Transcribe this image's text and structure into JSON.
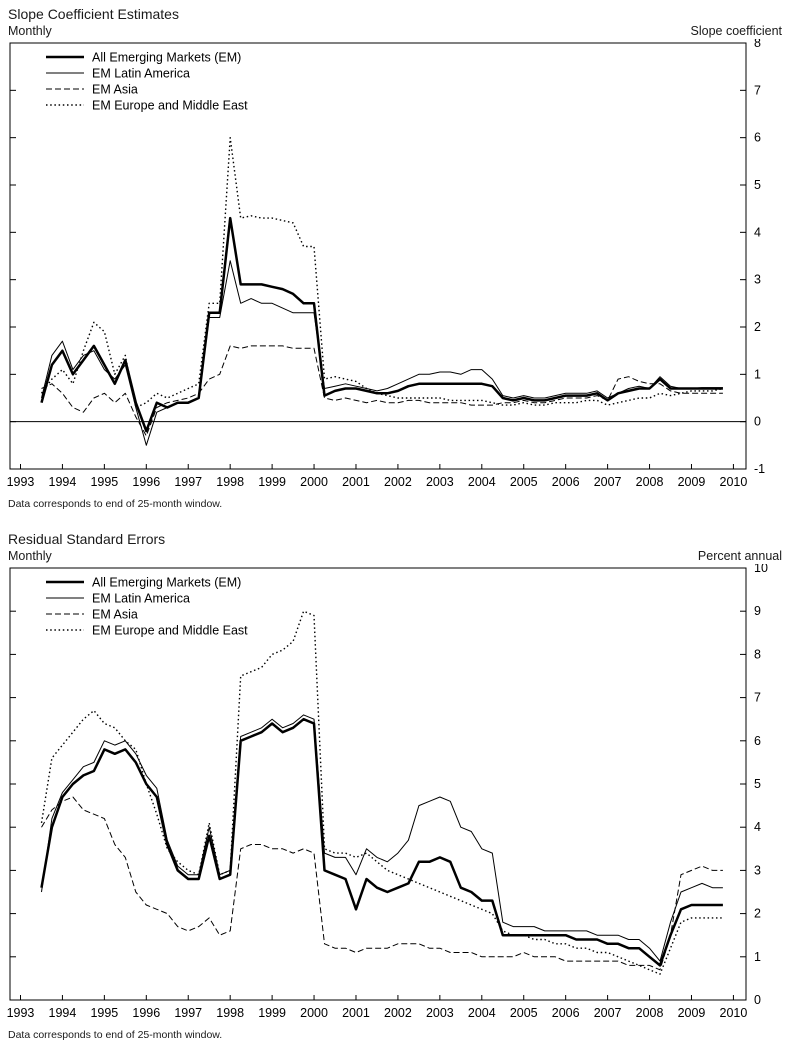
{
  "page": {
    "background_color": "#ffffff",
    "line_color": "#000000"
  },
  "chart_data": [
    {
      "type": "line",
      "title": "Slope Coefficient Estimates",
      "subtitle_left": "Monthly",
      "axis_label_right": "Slope coefficient",
      "footnote": "Data corresponds to end of 25-month window.",
      "legend_position": "top-left-inside",
      "grid": false,
      "zero_line": true,
      "ylim": [
        -1,
        8
      ],
      "yticks": [
        -1,
        0,
        1,
        2,
        3,
        4,
        5,
        6,
        7,
        8
      ],
      "xlim": [
        1992.75,
        2010.3
      ],
      "xticks": [
        1993,
        1994,
        1995,
        1996,
        1997,
        1998,
        1999,
        2000,
        2001,
        2002,
        2003,
        2004,
        2005,
        2006,
        2007,
        2008,
        2009,
        2010
      ],
      "x": [
        1993.5,
        1993.75,
        1994,
        1994.25,
        1994.5,
        1994.75,
        1995,
        1995.25,
        1995.5,
        1995.75,
        1996,
        1996.25,
        1996.5,
        1996.75,
        1997,
        1997.25,
        1997.5,
        1997.75,
        1998,
        1998.25,
        1998.5,
        1998.75,
        1999,
        1999.25,
        1999.5,
        1999.75,
        2000,
        2000.25,
        2000.5,
        2000.75,
        2001,
        2001.25,
        2001.5,
        2001.75,
        2002,
        2002.25,
        2002.5,
        2002.75,
        2003,
        2003.25,
        2003.5,
        2003.75,
        2004,
        2004.25,
        2004.5,
        2004.75,
        2005,
        2005.25,
        2005.5,
        2005.75,
        2006,
        2006.25,
        2006.5,
        2006.75,
        2007,
        2007.25,
        2007.5,
        2007.75,
        2008,
        2008.25,
        2008.5,
        2008.75,
        2009,
        2009.25,
        2009.5,
        2009.75
      ],
      "series": [
        {
          "name": "All Emerging Markets (EM)",
          "style": "thick",
          "values": [
            0.4,
            1.2,
            1.5,
            1.0,
            1.3,
            1.6,
            1.2,
            0.8,
            1.3,
            0.4,
            -0.2,
            0.4,
            0.3,
            0.4,
            0.4,
            0.5,
            2.3,
            2.3,
            4.3,
            2.9,
            2.9,
            2.9,
            2.85,
            2.8,
            2.7,
            2.5,
            2.5,
            0.55,
            0.65,
            0.7,
            0.7,
            0.65,
            0.6,
            0.6,
            0.65,
            0.75,
            0.8,
            0.8,
            0.8,
            0.8,
            0.8,
            0.8,
            0.8,
            0.75,
            0.5,
            0.45,
            0.5,
            0.45,
            0.45,
            0.5,
            0.55,
            0.55,
            0.55,
            0.6,
            0.45,
            0.6,
            0.65,
            0.7,
            0.7,
            0.9,
            0.7,
            0.7,
            0.7,
            0.7,
            0.7,
            0.7
          ]
        },
        {
          "name": "EM Latin America",
          "style": "thin",
          "values": [
            0.5,
            1.4,
            1.7,
            1.1,
            1.4,
            1.5,
            1.1,
            0.9,
            1.2,
            0.3,
            -0.5,
            0.2,
            0.3,
            0.4,
            0.4,
            0.5,
            2.2,
            2.2,
            3.4,
            2.5,
            2.6,
            2.5,
            2.5,
            2.4,
            2.3,
            2.3,
            2.3,
            0.7,
            0.75,
            0.8,
            0.75,
            0.7,
            0.65,
            0.7,
            0.8,
            0.9,
            1.0,
            1.0,
            1.05,
            1.05,
            1.0,
            1.1,
            1.1,
            0.9,
            0.55,
            0.5,
            0.55,
            0.5,
            0.5,
            0.55,
            0.6,
            0.6,
            0.6,
            0.65,
            0.5,
            0.6,
            0.7,
            0.75,
            0.7,
            0.95,
            0.75,
            0.7,
            0.7,
            0.72,
            0.72,
            0.72
          ]
        },
        {
          "name": "EM Asia",
          "style": "dashed",
          "values": [
            0.7,
            0.8,
            0.6,
            0.3,
            0.2,
            0.5,
            0.6,
            0.4,
            0.6,
            0.1,
            -0.3,
            0.3,
            0.4,
            0.45,
            0.5,
            0.6,
            0.9,
            1.0,
            1.6,
            1.55,
            1.6,
            1.6,
            1.6,
            1.6,
            1.55,
            1.55,
            1.55,
            0.5,
            0.45,
            0.5,
            0.45,
            0.4,
            0.45,
            0.4,
            0.4,
            0.45,
            0.45,
            0.4,
            0.4,
            0.4,
            0.4,
            0.35,
            0.35,
            0.35,
            0.4,
            0.4,
            0.45,
            0.4,
            0.4,
            0.45,
            0.5,
            0.5,
            0.5,
            0.55,
            0.45,
            0.9,
            0.95,
            0.85,
            0.8,
            0.8,
            0.65,
            0.6,
            0.6,
            0.6,
            0.6,
            0.6
          ]
        },
        {
          "name": "EM Europe and Middle East",
          "style": "dotted",
          "values": [
            0.6,
            0.9,
            1.1,
            0.8,
            1.5,
            2.1,
            1.9,
            1.0,
            1.4,
            0.3,
            0.4,
            0.6,
            0.5,
            0.6,
            0.7,
            0.8,
            2.5,
            2.5,
            6.0,
            4.3,
            4.35,
            4.3,
            4.3,
            4.25,
            4.2,
            3.7,
            3.7,
            0.9,
            0.95,
            0.9,
            0.85,
            0.7,
            0.6,
            0.55,
            0.5,
            0.5,
            0.5,
            0.5,
            0.5,
            0.45,
            0.45,
            0.45,
            0.45,
            0.4,
            0.35,
            0.35,
            0.4,
            0.35,
            0.35,
            0.4,
            0.4,
            0.4,
            0.45,
            0.45,
            0.35,
            0.4,
            0.45,
            0.5,
            0.5,
            0.6,
            0.55,
            0.6,
            0.65,
            0.65,
            0.65,
            0.7
          ]
        }
      ]
    },
    {
      "type": "line",
      "title": "Residual Standard Errors",
      "subtitle_left": "Monthly",
      "axis_label_right": "Percent annual",
      "footnote": "Data corresponds to end of 25-month window.",
      "legend_position": "top-left-inside",
      "grid": false,
      "zero_line": false,
      "ylim": [
        0,
        10
      ],
      "yticks": [
        0,
        1,
        2,
        3,
        4,
        5,
        6,
        7,
        8,
        9,
        10
      ],
      "xlim": [
        1992.75,
        2010.3
      ],
      "xticks": [
        1993,
        1994,
        1995,
        1996,
        1997,
        1998,
        1999,
        2000,
        2001,
        2002,
        2003,
        2004,
        2005,
        2006,
        2007,
        2008,
        2009,
        2010
      ],
      "x": [
        1993.5,
        1993.75,
        1994,
        1994.25,
        1994.5,
        1994.75,
        1995,
        1995.25,
        1995.5,
        1995.75,
        1996,
        1996.25,
        1996.5,
        1996.75,
        1997,
        1997.25,
        1997.5,
        1997.75,
        1998,
        1998.25,
        1998.5,
        1998.75,
        1999,
        1999.25,
        1999.5,
        1999.75,
        2000,
        2000.25,
        2000.5,
        2000.75,
        2001,
        2001.25,
        2001.5,
        2001.75,
        2002,
        2002.25,
        2002.5,
        2002.75,
        2003,
        2003.25,
        2003.5,
        2003.75,
        2004,
        2004.25,
        2004.5,
        2004.75,
        2005,
        2005.25,
        2005.5,
        2005.75,
        2006,
        2006.25,
        2006.5,
        2006.75,
        2007,
        2007.25,
        2007.5,
        2007.75,
        2008,
        2008.25,
        2008.5,
        2008.75,
        2009,
        2009.25,
        2009.5,
        2009.75
      ],
      "series": [
        {
          "name": "All Emerging Markets (EM)",
          "style": "thick",
          "values": [
            2.6,
            4.0,
            4.7,
            5.0,
            5.2,
            5.3,
            5.8,
            5.7,
            5.8,
            5.5,
            5.0,
            4.7,
            3.6,
            3.0,
            2.8,
            2.8,
            3.8,
            2.8,
            2.9,
            6.0,
            6.1,
            6.2,
            6.4,
            6.2,
            6.3,
            6.5,
            6.4,
            3.0,
            2.9,
            2.8,
            2.1,
            2.8,
            2.6,
            2.5,
            2.6,
            2.7,
            3.2,
            3.2,
            3.3,
            3.2,
            2.6,
            2.5,
            2.3,
            2.3,
            1.5,
            1.5,
            1.5,
            1.5,
            1.5,
            1.5,
            1.5,
            1.4,
            1.4,
            1.4,
            1.3,
            1.3,
            1.2,
            1.2,
            1.0,
            0.8,
            1.5,
            2.1,
            2.2,
            2.2,
            2.2,
            2.2
          ]
        },
        {
          "name": "EM Latin America",
          "style": "thin",
          "values": [
            2.5,
            4.2,
            4.8,
            5.1,
            5.4,
            5.5,
            6.0,
            5.9,
            6.0,
            5.7,
            5.2,
            4.9,
            3.7,
            3.1,
            2.9,
            2.9,
            4.0,
            2.9,
            3.0,
            6.1,
            6.2,
            6.3,
            6.5,
            6.3,
            6.4,
            6.6,
            6.5,
            3.4,
            3.3,
            3.3,
            2.9,
            3.5,
            3.3,
            3.2,
            3.4,
            3.7,
            4.5,
            4.6,
            4.7,
            4.6,
            4.0,
            3.9,
            3.5,
            3.4,
            1.8,
            1.7,
            1.7,
            1.7,
            1.6,
            1.6,
            1.6,
            1.6,
            1.6,
            1.5,
            1.5,
            1.5,
            1.4,
            1.4,
            1.2,
            0.9,
            1.8,
            2.5,
            2.6,
            2.7,
            2.6,
            2.6
          ]
        },
        {
          "name": "EM Asia",
          "style": "dashed",
          "values": [
            4.0,
            4.4,
            4.6,
            4.7,
            4.4,
            4.3,
            4.2,
            3.6,
            3.3,
            2.5,
            2.2,
            2.1,
            2.0,
            1.7,
            1.6,
            1.7,
            1.9,
            1.5,
            1.6,
            3.5,
            3.6,
            3.6,
            3.5,
            3.5,
            3.4,
            3.5,
            3.4,
            1.3,
            1.2,
            1.2,
            1.1,
            1.2,
            1.2,
            1.2,
            1.3,
            1.3,
            1.3,
            1.2,
            1.2,
            1.1,
            1.1,
            1.1,
            1.0,
            1.0,
            1.0,
            1.0,
            1.1,
            1.0,
            1.0,
            1.0,
            0.9,
            0.9,
            0.9,
            0.9,
            0.9,
            0.9,
            0.8,
            0.8,
            0.8,
            0.7,
            1.5,
            2.9,
            3.0,
            3.1,
            3.0,
            3.0
          ]
        },
        {
          "name": "EM Europe and Middle East",
          "style": "dotted",
          "values": [
            4.1,
            5.6,
            5.9,
            6.2,
            6.5,
            6.7,
            6.4,
            6.3,
            6.0,
            5.8,
            5.0,
            4.3,
            3.5,
            3.2,
            3.0,
            2.9,
            4.1,
            2.9,
            3.0,
            7.5,
            7.6,
            7.7,
            8.0,
            8.1,
            8.3,
            9.0,
            8.9,
            3.5,
            3.4,
            3.4,
            3.3,
            3.4,
            3.2,
            3.0,
            2.9,
            2.8,
            2.7,
            2.6,
            2.5,
            2.4,
            2.3,
            2.2,
            2.1,
            2.0,
            1.6,
            1.5,
            1.5,
            1.4,
            1.4,
            1.3,
            1.3,
            1.2,
            1.2,
            1.1,
            1.1,
            1.0,
            0.9,
            0.8,
            0.7,
            0.6,
            1.2,
            1.8,
            1.9,
            1.9,
            1.9,
            1.9
          ]
        }
      ]
    }
  ]
}
